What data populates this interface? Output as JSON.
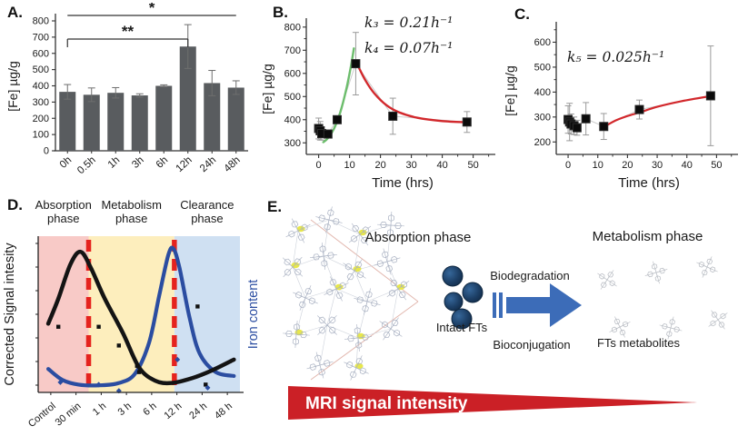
{
  "panels": {
    "a_label": "A.",
    "b_label": "B.",
    "c_label": "C.",
    "d_label": "D.",
    "e_label": "E."
  },
  "panel_e": {
    "absorption_title": "Absorption phase",
    "metabolism_title": "Metabolism phase",
    "intact_fts_label": "Intact FTs",
    "biodegradation_label": "Biodegradation",
    "bioconjugation_label": "Bioconjugation",
    "fts_metabolites_label": "FTs metabolites",
    "mri_wedge_label": "MRI signal intensity",
    "arrow_color": "#3c6cb8",
    "wedge_color": "#cb2026",
    "nanoparticle_color": "#1c3b5e",
    "molecule_stroke": "#a9b1c2",
    "metabolite_stroke": "#b6bac1",
    "highlight_color": "#e7e74b",
    "converge_line_color": "#e2b7ae"
  },
  "chart_data": [
    {
      "id": "A",
      "type": "bar",
      "title": "",
      "categories": [
        "0h",
        "0.5h",
        "1h",
        "3h",
        "6h",
        "12h",
        "24h",
        "48h"
      ],
      "values": [
        363,
        345,
        357,
        341,
        400,
        642,
        417,
        389
      ],
      "errors": [
        45,
        42,
        32,
        10,
        6,
        135,
        78,
        42
      ],
      "xlabel": "",
      "ylabel": "[Fe] µg/g",
      "ylim": [
        0,
        800
      ],
      "yticks": [
        0,
        100,
        200,
        300,
        400,
        500,
        600,
        700,
        800
      ],
      "bar_color": "#595c5f",
      "error_color": "#6e6e6e",
      "significance": [
        {
          "label": "*",
          "from": 0,
          "to": 7,
          "y": 14,
          "drop": 0
        },
        {
          "label": "**",
          "from": 0,
          "to": 5,
          "y": 40,
          "drop": 9
        }
      ]
    },
    {
      "id": "B",
      "type": "scatter",
      "x": [
        0,
        0.5,
        1,
        3,
        6,
        12,
        24,
        48
      ],
      "y": [
        362,
        352,
        340,
        338,
        400,
        642,
        415,
        390
      ],
      "errors": [
        45,
        40,
        28,
        12,
        8,
        135,
        78,
        45
      ],
      "xlabel": "Time (hrs)",
      "ylabel": "[Fe] µg/g",
      "xlim": [
        -4,
        56
      ],
      "ylim": [
        250,
        815
      ],
      "xticks": [
        0,
        10,
        20,
        30,
        40,
        50
      ],
      "yticks": [
        300,
        400,
        500,
        600,
        700,
        800
      ],
      "annotations": [
        {
          "text": "k₃ = 0.21h⁻¹",
          "x": 118,
          "y": 30
        },
        {
          "text": "k₄ = 0.07h⁻¹",
          "x": 118,
          "y": 58
        }
      ],
      "curves": [
        {
          "name": "uptake-fit",
          "color": "#6cbd6c",
          "width": 2.4,
          "pts": [
            [
              1.5,
              303
            ],
            [
              3,
              320
            ],
            [
              5,
              362
            ],
            [
              7,
              432
            ],
            [
              9,
              535
            ],
            [
              10.5,
              635
            ],
            [
              11.4,
              708
            ]
          ]
        },
        {
          "name": "clearance-fit",
          "color": "#d2282c",
          "width": 2.4,
          "pts": [
            [
              12.2,
              648
            ],
            [
              15,
              573
            ],
            [
              18,
              514
            ],
            [
              22,
              462
            ],
            [
              26,
              432
            ],
            [
              32,
              408
            ],
            [
              40,
              394
            ],
            [
              48,
              389
            ]
          ]
        }
      ]
    },
    {
      "id": "C",
      "type": "scatter",
      "x": [
        0,
        0.5,
        1,
        2,
        3,
        6,
        12,
        24,
        48
      ],
      "y": [
        290,
        280,
        272,
        265,
        257,
        293,
        262,
        330,
        385
      ],
      "errors": [
        55,
        75,
        40,
        35,
        30,
        65,
        52,
        38,
        200
      ],
      "xlabel": "Time (hrs)",
      "ylabel": "[Fe] µg/g",
      "xlim": [
        -4,
        56
      ],
      "ylim": [
        150,
        660
      ],
      "xticks": [
        0,
        10,
        20,
        30,
        40,
        50
      ],
      "yticks": [
        200,
        300,
        400,
        500,
        600
      ],
      "annotations": [
        {
          "text": "k₅ = 0.025h⁻¹",
          "x": 74,
          "y": 68
        }
      ],
      "curves": [
        {
          "name": "redistribution-fit",
          "color": "#d2282c",
          "width": 2.2,
          "pts": [
            [
              12.5,
              263
            ],
            [
              16,
              286
            ],
            [
              20,
              304
            ],
            [
              24,
              318
            ],
            [
              30,
              341
            ],
            [
              38,
              363
            ],
            [
              48,
              384
            ]
          ]
        }
      ]
    },
    {
      "id": "D",
      "type": "schematic",
      "phases": [
        {
          "line1": "Absorption",
          "line2": "phase",
          "color": "#f8cac7",
          "from": 0,
          "to": 0.25
        },
        {
          "line1": "Metabolism",
          "line2": "phase",
          "color": "#fdeebd",
          "from": 0.25,
          "to": 0.675
        },
        {
          "line1": "Clearance",
          "line2": "phase",
          "color": "#cfe0f2",
          "from": 0.675,
          "to": 1
        }
      ],
      "red_lines": [
        0.25,
        0.675
      ],
      "categories": [
        "Control",
        "30 min",
        "1 h",
        "3 h",
        "6 h",
        "12 h",
        "24 h",
        "48 h"
      ],
      "ylabel_left": "Corrected Signal intesity",
      "ylabel_right": "Iron content",
      "signal_curve": [
        [
          0.05,
          0.44
        ],
        [
          0.1,
          0.6
        ],
        [
          0.16,
          0.82
        ],
        [
          0.21,
          0.9
        ],
        [
          0.26,
          0.8
        ],
        [
          0.33,
          0.6
        ],
        [
          0.42,
          0.38
        ],
        [
          0.5,
          0.16
        ],
        [
          0.58,
          0.075
        ],
        [
          0.66,
          0.06
        ],
        [
          0.76,
          0.09
        ],
        [
          0.86,
          0.14
        ],
        [
          0.97,
          0.21
        ]
      ],
      "iron_curve": [
        [
          0.05,
          0.15
        ],
        [
          0.12,
          0.08
        ],
        [
          0.2,
          0.05
        ],
        [
          0.3,
          0.045
        ],
        [
          0.4,
          0.06
        ],
        [
          0.48,
          0.12
        ],
        [
          0.55,
          0.32
        ],
        [
          0.6,
          0.62
        ],
        [
          0.645,
          0.88
        ],
        [
          0.67,
          0.92
        ],
        [
          0.7,
          0.8
        ],
        [
          0.75,
          0.48
        ],
        [
          0.8,
          0.25
        ],
        [
          0.88,
          0.13
        ],
        [
          0.97,
          0.105
        ]
      ],
      "signal_points": [
        [
          0.1,
          0.42
        ],
        [
          0.3,
          0.42
        ],
        [
          0.4,
          0.3
        ],
        [
          0.49,
          0.17
        ],
        [
          0.5,
          0.13
        ],
        [
          0.79,
          0.55
        ],
        [
          0.83,
          0.05
        ]
      ],
      "iron_points": [
        [
          0.11,
          0.065
        ],
        [
          0.3,
          0.05
        ],
        [
          0.4,
          0.01
        ],
        [
          0.69,
          0.21
        ],
        [
          0.84,
          0.03
        ]
      ],
      "colors": {
        "signal": "#141414",
        "iron": "#2b4da1",
        "red_line": "#e5231e"
      }
    }
  ]
}
